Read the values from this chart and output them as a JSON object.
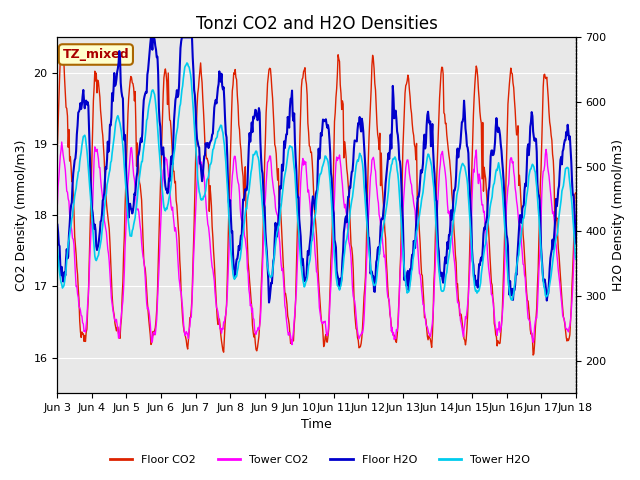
{
  "title": "Tonzi CO2 and H2O Densities",
  "xlabel": "Time",
  "ylabel_left": "CO2 Density (mmol/m3)",
  "ylabel_right": "H2O Density (mmol/m3)",
  "ylim_left": [
    15.5,
    20.5
  ],
  "ylim_right": [
    150,
    700
  ],
  "xlim": [
    0,
    360
  ],
  "xtick_positions": [
    0,
    24,
    48,
    72,
    96,
    120,
    144,
    168,
    192,
    216,
    240,
    264,
    288,
    312,
    336,
    360
  ],
  "xtick_labels": [
    "Jun 3",
    "Jun 4",
    "Jun 5",
    "Jun 6",
    "Jun 7",
    "Jun 8",
    "Jun 9",
    "Jun 10",
    "Jun 11",
    "Jun 12",
    "Jun 13",
    "Jun 14",
    "Jun 15",
    "Jun 16",
    "Jun 17",
    "Jun 18"
  ],
  "annotation_text": "TZ_mixed",
  "annotation_color": "#aa0000",
  "annotation_bg": "#ffffcc",
  "annotation_edge": "#aa6600",
  "background_color": "#e8e8e8",
  "floor_co2_color": "#dd2200",
  "tower_co2_color": "#ff00ff",
  "floor_h2o_color": "#0000cc",
  "tower_h2o_color": "#00ccee",
  "legend_labels": [
    "Floor CO2",
    "Tower CO2",
    "Floor H2O",
    "Tower H2O"
  ],
  "title_fontsize": 12,
  "label_fontsize": 9,
  "tick_fontsize": 8,
  "grid_color": "white",
  "linewidth_co2": 1.0,
  "linewidth_h2o": 1.5
}
